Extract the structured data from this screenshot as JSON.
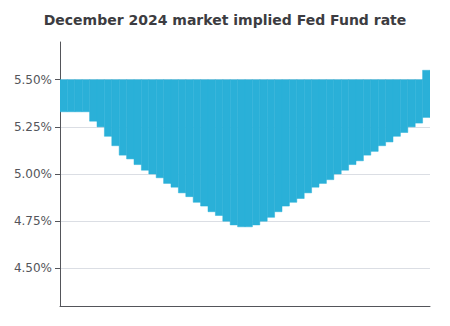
{
  "chart_data": {
    "type": "band",
    "title": "December 2024 market implied Fed Fund rate",
    "x": [
      0,
      1,
      2,
      3,
      4,
      5,
      6,
      7,
      8,
      9,
      10,
      11,
      12,
      13,
      14,
      15,
      16,
      17,
      18,
      19,
      20,
      21,
      22,
      23,
      24,
      25,
      26,
      27,
      28,
      29,
      30,
      31,
      32,
      33,
      34,
      35,
      36,
      37,
      38,
      39,
      40,
      41,
      42,
      43,
      44,
      45,
      46,
      47,
      48,
      49,
      50
    ],
    "series": [
      {
        "values": [
          5.33,
          5.33,
          5.33,
          5.33,
          5.28,
          5.25,
          5.2,
          5.15,
          5.1,
          5.08,
          5.05,
          5.02,
          5.0,
          4.98,
          4.95,
          4.93,
          4.9,
          4.88,
          4.85,
          4.83,
          4.8,
          4.78,
          4.75,
          4.73,
          4.72,
          4.72,
          4.73,
          4.75,
          4.77,
          4.8,
          4.83,
          4.85,
          4.87,
          4.9,
          4.93,
          4.95,
          4.97,
          5.0,
          5.02,
          5.05,
          5.07,
          5.1,
          5.12,
          5.15,
          5.17,
          5.2,
          5.22,
          5.25,
          5.27,
          5.3,
          5.33
        ]
      },
      {
        "values": [
          5.5,
          5.5,
          5.5,
          5.5,
          5.5,
          5.5,
          5.5,
          5.5,
          5.5,
          5.5,
          5.5,
          5.5,
          5.5,
          5.5,
          5.5,
          5.5,
          5.5,
          5.5,
          5.5,
          5.5,
          5.5,
          5.5,
          5.5,
          5.5,
          5.5,
          5.5,
          5.5,
          5.5,
          5.5,
          5.5,
          5.5,
          5.5,
          5.5,
          5.5,
          5.5,
          5.5,
          5.5,
          5.5,
          5.5,
          5.5,
          5.5,
          5.5,
          5.5,
          5.5,
          5.5,
          5.5,
          5.5,
          5.5,
          5.5,
          5.55,
          5.6
        ]
      }
    ],
    "color": "#2ab0d8",
    "xlim": [
      0,
      50
    ],
    "xticks": [],
    "ylim": [
      4.3,
      5.7
    ],
    "yticks": [
      {
        "value": 4.5,
        "label": "4.50%"
      },
      {
        "value": 4.75,
        "label": "4.75%"
      },
      {
        "value": 5.0,
        "label": "5.00%"
      },
      {
        "value": 5.25,
        "label": "5.25%"
      },
      {
        "value": 5.5,
        "label": "5.50%"
      }
    ],
    "tick_labels": "y",
    "grid": true
  }
}
